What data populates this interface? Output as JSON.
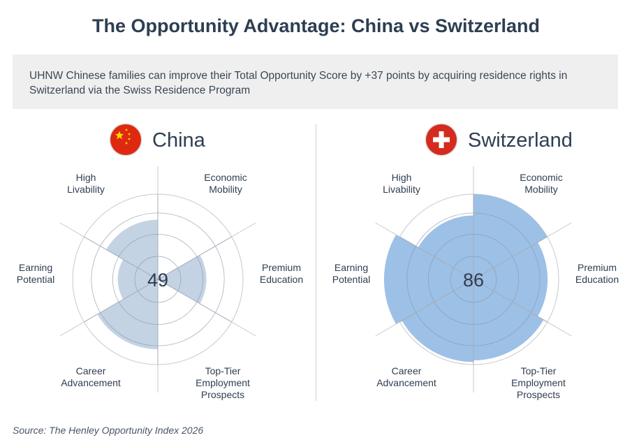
{
  "title": "The Opportunity Advantage: China vs Switzerland",
  "callout": "UHNW Chinese families can improve their Total Opportunity Score by +37 points by acquiring residence rights in Switzerland via the Swiss Residence Program",
  "source": "Source: The Henley Opportunity Index 2026",
  "chart_data": [
    {
      "type": "radar",
      "country": "China",
      "flag": "china-flag",
      "score": "49",
      "color": "#c4d3e4",
      "rmax": 100,
      "categories": [
        {
          "label_lines": [
            "Economic",
            "Mobility"
          ],
          "value": 0
        },
        {
          "label_lines": [
            "Premium",
            "Education"
          ],
          "value": 57
        },
        {
          "label_lines": [
            "Top-Tier",
            "Employment",
            "Prospects"
          ],
          "value": 0
        },
        {
          "label_lines": [
            "Career",
            "Advancement"
          ],
          "value": 82
        },
        {
          "label_lines": [
            "Earning",
            "Potential"
          ],
          "value": 47
        },
        {
          "label_lines": [
            "High",
            "Livability"
          ],
          "value": 70
        }
      ]
    },
    {
      "type": "radar",
      "country": "Switzerland",
      "flag": "swiss-flag",
      "score": "86",
      "color": "#9dc0e6",
      "rmax": 100,
      "categories": [
        {
          "label_lines": [
            "Economic",
            "Mobility"
          ],
          "value": 100
        },
        {
          "label_lines": [
            "Premium",
            "Education"
          ],
          "value": 87
        },
        {
          "label_lines": [
            "Top-Tier",
            "Employment",
            "Prospects"
          ],
          "value": 95
        },
        {
          "label_lines": [
            "Career",
            "Advancement"
          ],
          "value": 97
        },
        {
          "label_lines": [
            "Earning",
            "Potential"
          ],
          "value": 105
        },
        {
          "label_lines": [
            "High",
            "Livability"
          ],
          "value": 75
        }
      ]
    }
  ]
}
